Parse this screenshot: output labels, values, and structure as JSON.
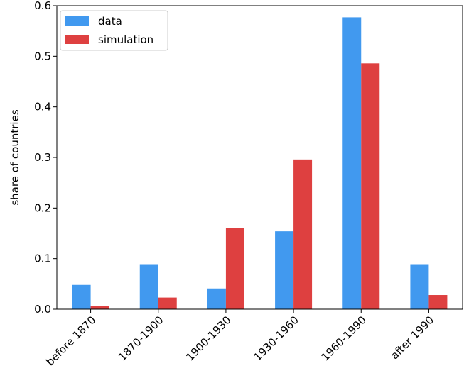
{
  "chart_data": {
    "type": "bar",
    "title": "",
    "xlabel": "",
    "ylabel": "share of countries",
    "ylim": [
      0,
      0.6
    ],
    "yticks": [
      0.0,
      0.1,
      0.2,
      0.3,
      0.4,
      0.5,
      0.6
    ],
    "ytick_labels": [
      "0.0",
      "0.1",
      "0.2",
      "0.3",
      "0.4",
      "0.5",
      "0.6"
    ],
    "categories": [
      "before 1870",
      "1870-1900",
      "1900-1930",
      "1930-1960",
      "1960-1990",
      "after 1990"
    ],
    "series": [
      {
        "name": "data",
        "color": "#4199ef",
        "values": [
          0.048,
          0.089,
          0.041,
          0.154,
          0.577,
          0.089
        ]
      },
      {
        "name": "simulation",
        "color": "#de4040",
        "values": [
          0.006,
          0.023,
          0.161,
          0.296,
          0.486,
          0.028
        ]
      }
    ],
    "grid": false,
    "legend_position": "top-left"
  }
}
